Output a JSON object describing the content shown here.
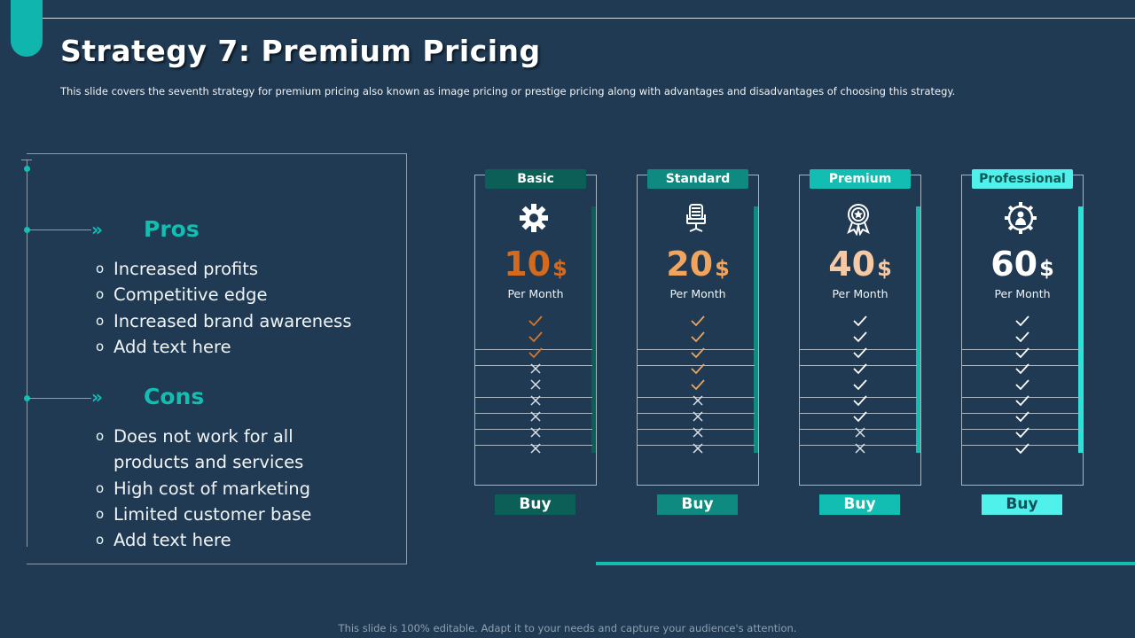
{
  "title": "Strategy 7: Premium Pricing",
  "subtitle": "This slide covers the seventh strategy for premium pricing also known as image pricing or prestige pricing along with advantages and disadvantages of choosing this strategy.",
  "pros": {
    "title": "Pros",
    "items": [
      "Increased profits",
      "Competitive edge",
      "Increased brand awareness",
      "Add text here"
    ]
  },
  "cons": {
    "title": "Cons",
    "items": [
      "Does not work for all",
      "products and services",
      "High cost of marketing",
      "Limited customer base",
      "Add text here"
    ]
  },
  "bullet": "o",
  "chevron": "»",
  "colors": {
    "background": "#1f3a52",
    "accent": "#14bdb1",
    "basic_tag": "#0b5f57",
    "standard_tag": "#0f8a80",
    "premium_tag": "#12bdb1",
    "professional_tag": "#4ff1ea"
  },
  "plans": [
    {
      "name": "Basic",
      "icon": "gear-icon",
      "price": "10",
      "currency": "$",
      "period": "Per Month",
      "buy": "Buy",
      "checks": 3,
      "rows": 9
    },
    {
      "name": "Standard",
      "icon": "office-chair-icon",
      "price": "20",
      "currency": "$",
      "period": "Per Month",
      "buy": "Buy",
      "checks": 5,
      "rows": 9
    },
    {
      "name": "Premium",
      "icon": "award-ribbon-icon",
      "price": "40",
      "currency": "$",
      "period": "Per Month",
      "buy": "Buy",
      "checks": 7,
      "rows": 9
    },
    {
      "name": "Professional",
      "icon": "gear-person-icon",
      "price": "60",
      "currency": "$",
      "period": "Per Month",
      "buy": "Buy",
      "checks": 9,
      "rows": 9
    }
  ],
  "footer": "This slide is 100% editable. Adapt it to your needs and capture your audience's attention."
}
